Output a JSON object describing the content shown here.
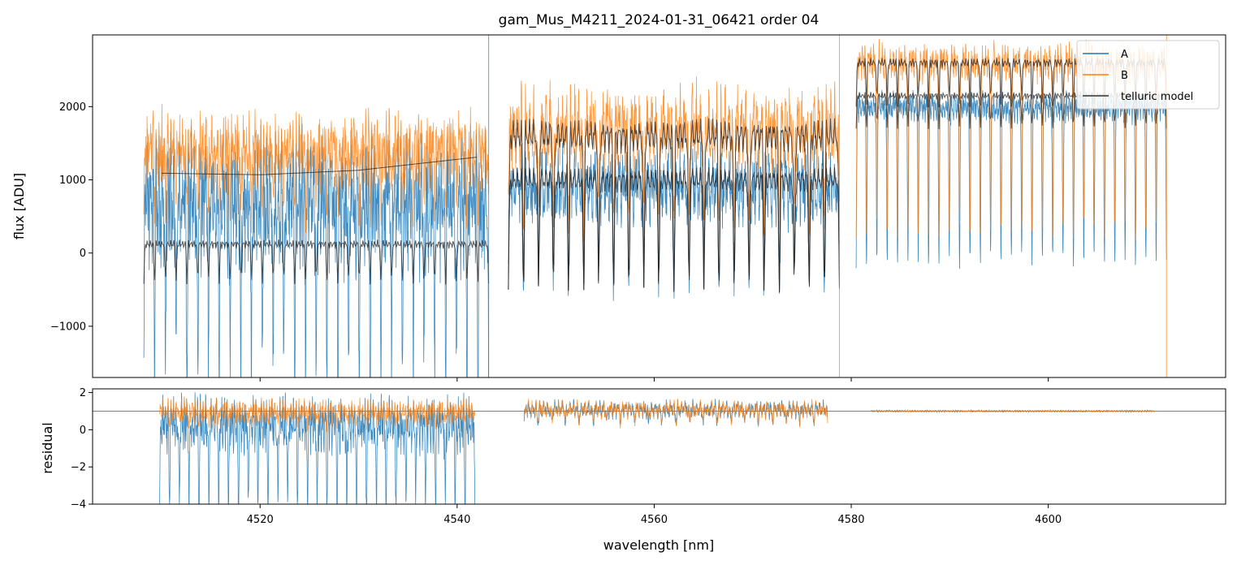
{
  "chart_data": {
    "type": "line",
    "title": "gam_Mus_M4211_2024-01-31_06421  order 04",
    "xlabel": "wavelength [nm]",
    "xlim": [
      4503,
      4618
    ],
    "x_ticks": [
      "4520",
      "4540",
      "4560",
      "4580",
      "4600"
    ],
    "x_tick_values": [
      4520,
      4540,
      4560,
      4580,
      4600
    ],
    "colors": {
      "A": "#1f77b4",
      "B": "#ff7f0e",
      "model": "#222222",
      "axis": "#000000"
    },
    "top_panel": {
      "ylabel": "flux [ADU]",
      "ylim": [
        -1700,
        2980
      ],
      "y_ticks": [
        "−1000",
        "0",
        "1000",
        "2000"
      ],
      "y_tick_values": [
        -1000,
        0,
        1000,
        2000
      ],
      "legend": {
        "position": "top-right",
        "entries": [
          "A",
          "B",
          "telluric model"
        ]
      },
      "segments": [
        {
          "x": [
            4508.2,
            4543.2
          ],
          "A": {
            "base": 700,
            "amp": 900,
            "dip": 2300,
            "dips": 32
          },
          "B": {
            "base": 1400,
            "amp": 500,
            "dip": 700,
            "dips": 32
          },
          "model_A": {
            "base": 120,
            "amp": 180,
            "dips": 32
          },
          "model_B_curve": [
            [
              4510,
              1090
            ],
            [
              4520,
              1070
            ],
            [
              4530,
              1130
            ],
            [
              4542,
              1310
            ]
          ]
        },
        {
          "x": [
            4545.2,
            4578.8
          ],
          "A": {
            "base": 900,
            "amp": 500,
            "dip": 1200,
            "dips": 22
          },
          "B": {
            "base": 1700,
            "amp": 550,
            "dip": 1100,
            "dips": 22
          },
          "model_A": {
            "base": 1000,
            "amp": 500,
            "dips": 22
          },
          "model_B": {
            "base": 1600,
            "amp": 700,
            "dips": 22
          }
        },
        {
          "x": [
            4580.5,
            4612.0
          ],
          "A": {
            "base": 2000,
            "amp": 200,
            "dip": 2100,
            "dips": 30
          },
          "B": {
            "base": 2600,
            "amp": 250,
            "dip": 2300,
            "dips": 30
          },
          "model_A": {
            "base": 2150,
            "amp": 150,
            "dips": 30
          },
          "model_B": {
            "base": 2600,
            "amp": 200,
            "dips": 30
          }
        }
      ]
    },
    "bottom_panel": {
      "ylabel": "residual",
      "ylim": [
        -4,
        2.2
      ],
      "y_ticks": [
        "−4",
        "−2",
        "0",
        "2"
      ],
      "y_tick_values": [
        -4,
        -2,
        0,
        2
      ],
      "reference_line": 1,
      "segments": [
        {
          "x": [
            4509.8,
            4541.8
          ],
          "A": {
            "base": 0.3,
            "amp": 1.6,
            "dip": 4.5,
            "dips": 32
          },
          "B": {
            "base": 1.0,
            "amp": 0.7,
            "dip": 0.5,
            "dips": 32
          }
        },
        {
          "x": [
            4546.8,
            4577.6
          ],
          "A": {
            "base": 1.1,
            "amp": 0.5,
            "dip": 0.6,
            "dips": 22
          },
          "B": {
            "base": 1.1,
            "amp": 0.5,
            "dip": 0.6,
            "dips": 22
          }
        },
        {
          "x": [
            4582.0,
            4610.8
          ],
          "A": {
            "base": 1.0,
            "amp": 0.05,
            "dip": 0.0,
            "dips": 30
          },
          "B": {
            "base": 1.0,
            "amp": 0.05,
            "dip": 0.0,
            "dips": 30
          }
        }
      ]
    }
  }
}
